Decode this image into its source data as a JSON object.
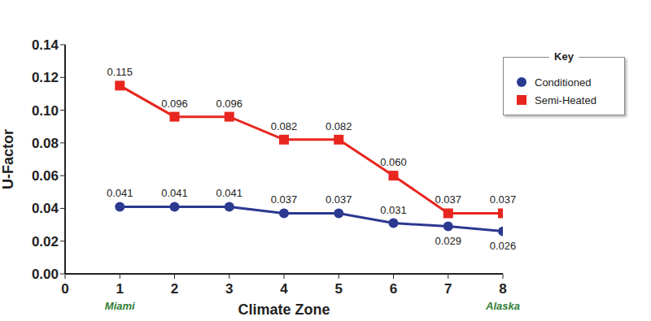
{
  "chart_data": {
    "type": "line",
    "x_label": "Climate Zone",
    "y_label": "U-Factor",
    "legend_title": "Key",
    "legend": "upper right",
    "grid": false,
    "data_labels": true,
    "x": [
      1,
      2,
      3,
      4,
      5,
      6,
      7,
      8
    ],
    "xlim": [
      0,
      8
    ],
    "xticks": [
      0,
      1,
      2,
      3,
      4,
      5,
      6,
      7,
      8
    ],
    "ylim": [
      0,
      0.14
    ],
    "yticks": [
      {
        "value": 0,
        "label": "0.00"
      },
      0.02,
      0.04,
      0.06,
      0.08,
      {
        "value": 0.1,
        "label": "0.10"
      },
      0.12,
      0.14
    ],
    "annotations": [
      {
        "text": "Miami",
        "x": 1
      },
      {
        "text": "Alaska",
        "x": 8
      }
    ],
    "series": [
      {
        "name": "Conditioned",
        "color": "#2b3990",
        "marker": "circle",
        "values": [
          0.041,
          0.041,
          0.041,
          0.037,
          0.037,
          0.031,
          0.029,
          0.026
        ]
      },
      {
        "name": "Semi-Heated",
        "color": "#e8251f",
        "marker": "square",
        "values": [
          0.115,
          0.096,
          0.096,
          0.082,
          0.082,
          0.06,
          0.037,
          0.037
        ],
        "value_labels": [
          "0.115",
          "0.096",
          "0.096",
          "0.082",
          "0.082",
          "0.060",
          "0.037",
          "0.037"
        ]
      }
    ]
  }
}
